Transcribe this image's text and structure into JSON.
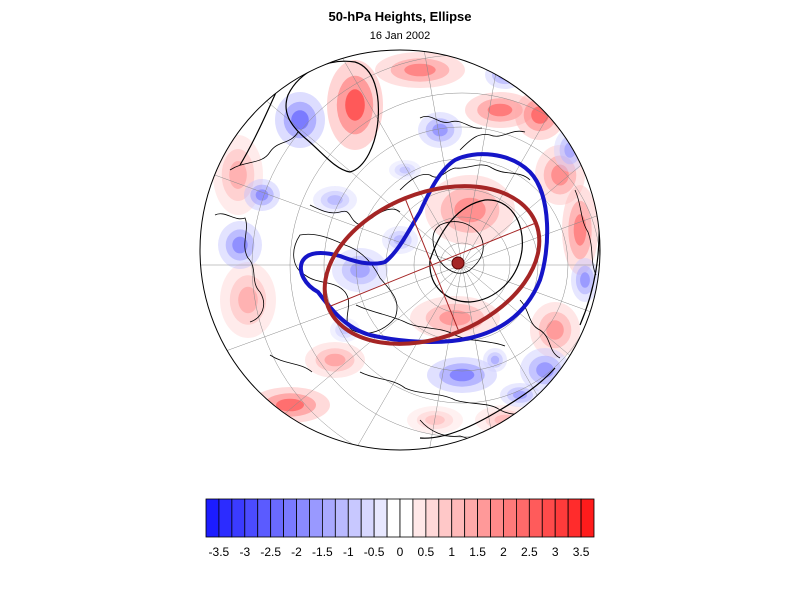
{
  "title": "50-hPa Heights, Ellipse",
  "subtitle": "16 Jan 2002",
  "map": {
    "projection": "polar-stereographic-orthographic",
    "colors": {
      "negative": "#1f1fff",
      "positive": "#ff2020",
      "ellipse_observed": "#1515c8",
      "ellipse_fitted": "#a52525",
      "coast": "#000000",
      "grid": "#8a8a8a"
    }
  },
  "colorbar": {
    "labels": [
      "-3.5",
      "-3",
      "-2.5",
      "-2",
      "-1.5",
      "-1",
      "-0.5",
      "0",
      "0.5",
      "1",
      "1.5",
      "2",
      "2.5",
      "3",
      "3.5"
    ],
    "min": -3.75,
    "max": 3.75,
    "step": 0.25
  }
}
